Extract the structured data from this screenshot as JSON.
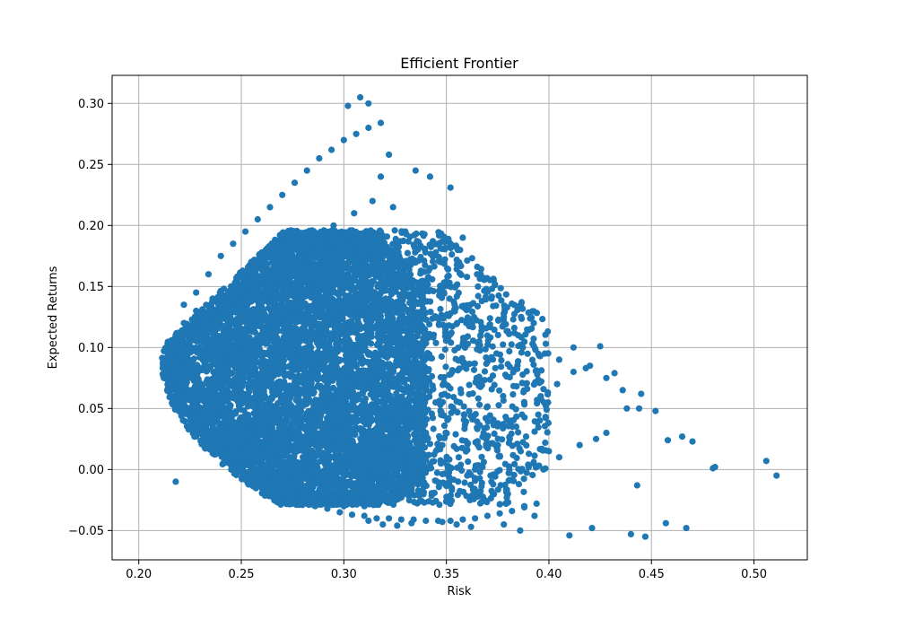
{
  "chart_data": {
    "type": "scatter",
    "title": "Efficient Frontier",
    "xlabel": "Risk",
    "ylabel": "Expected Returns",
    "xlim": [
      0.187,
      0.526
    ],
    "ylim": [
      -0.074,
      0.323
    ],
    "grid": true,
    "color": "#1f77b4",
    "xticks": [
      0.2,
      0.25,
      0.3,
      0.35,
      0.4,
      0.45,
      0.5
    ],
    "xtick_labels": [
      "0.20",
      "0.25",
      "0.30",
      "0.35",
      "0.40",
      "0.45",
      "0.50"
    ],
    "yticks": [
      -0.05,
      0.0,
      0.05,
      0.1,
      0.15,
      0.2,
      0.25,
      0.3
    ],
    "ytick_labels": [
      "−0.05",
      "0.00",
      "0.05",
      "0.10",
      "0.15",
      "0.20",
      "0.25",
      "0.30"
    ],
    "series": [
      {
        "x": [
          0.212,
          0.213,
          0.214,
          0.216,
          0.218,
          0.22,
          0.222,
          0.225,
          0.228,
          0.232,
          0.236,
          0.24,
          0.245,
          0.25,
          0.255,
          0.26,
          0.265,
          0.27,
          0.275,
          0.28,
          0.285,
          0.29,
          0.295,
          0.3,
          0.305,
          0.31,
          0.314,
          0.218,
          0.222,
          0.228,
          0.234,
          0.24,
          0.246,
          0.252,
          0.258,
          0.264,
          0.27,
          0.276,
          0.282,
          0.288,
          0.294,
          0.3,
          0.306,
          0.312,
          0.318,
          0.324,
          0.33,
          0.336,
          0.342,
          0.348,
          0.354,
          0.36,
          0.366,
          0.372,
          0.215,
          0.22,
          0.226,
          0.232,
          0.238,
          0.244,
          0.25,
          0.256,
          0.262,
          0.268,
          0.274,
          0.28,
          0.286,
          0.292,
          0.298,
          0.304,
          0.31,
          0.316,
          0.322,
          0.328,
          0.334,
          0.34,
          0.346,
          0.352,
          0.358,
          0.364,
          0.37,
          0.376,
          0.382,
          0.388,
          0.394,
          0.228,
          0.236,
          0.244,
          0.252,
          0.26,
          0.268,
          0.276,
          0.284,
          0.292,
          0.3,
          0.308,
          0.316,
          0.324,
          0.332,
          0.34,
          0.348,
          0.356,
          0.364,
          0.372,
          0.38,
          0.388,
          0.396,
          0.404,
          0.412,
          0.42,
          0.428,
          0.436,
          0.444,
          0.302,
          0.308,
          0.312,
          0.318,
          0.322,
          0.335,
          0.342,
          0.352,
          0.358,
          0.365,
          0.372,
          0.378,
          0.385,
          0.392,
          0.398,
          0.405,
          0.412,
          0.418,
          0.425,
          0.432,
          0.438,
          0.445,
          0.452,
          0.458,
          0.465,
          0.47,
          0.48,
          0.481,
          0.506,
          0.511,
          0.41,
          0.421,
          0.44,
          0.443,
          0.447,
          0.457,
          0.467,
          0.4,
          0.405,
          0.415,
          0.423,
          0.428,
          0.378,
          0.386,
          0.393,
          0.348,
          0.355,
          0.362,
          0.333,
          0.326,
          0.319,
          0.312
        ],
        "y": [
          0.09,
          0.08,
          0.1,
          0.06,
          0.11,
          0.05,
          0.12,
          0.04,
          0.13,
          0.03,
          0.14,
          0.02,
          0.15,
          0.01,
          0.16,
          0.0,
          0.17,
          -0.01,
          0.18,
          -0.02,
          0.19,
          -0.025,
          0.2,
          -0.03,
          0.21,
          -0.03,
          0.22,
          -0.01,
          0.135,
          0.145,
          0.16,
          0.175,
          0.185,
          0.195,
          0.205,
          0.215,
          0.225,
          0.235,
          0.245,
          0.255,
          0.262,
          0.27,
          0.275,
          0.28,
          0.24,
          0.215,
          0.195,
          0.18,
          0.165,
          0.15,
          0.135,
          0.12,
          0.105,
          0.092,
          0.07,
          0.06,
          0.05,
          0.04,
          0.03,
          0.02,
          0.01,
          0.0,
          -0.01,
          -0.015,
          -0.02,
          -0.025,
          -0.03,
          -0.032,
          -0.035,
          -0.037,
          -0.038,
          -0.04,
          -0.04,
          -0.041,
          -0.041,
          -0.042,
          -0.042,
          -0.042,
          -0.041,
          -0.04,
          -0.038,
          -0.036,
          -0.034,
          -0.031,
          -0.028,
          0.05,
          0.06,
          0.07,
          0.08,
          0.09,
          0.1,
          0.11,
          0.1,
          0.09,
          0.08,
          0.07,
          0.06,
          0.05,
          0.04,
          0.03,
          0.02,
          0.01,
          0.0,
          -0.01,
          -0.02,
          -0.03,
          0.06,
          0.07,
          0.08,
          0.085,
          0.075,
          0.065,
          0.05,
          0.298,
          0.305,
          0.3,
          0.284,
          0.258,
          0.245,
          0.24,
          0.231,
          0.19,
          0.16,
          0.14,
          0.125,
          0.11,
          0.103,
          0.095,
          0.09,
          0.1,
          0.083,
          0.101,
          0.079,
          0.05,
          0.062,
          0.048,
          0.024,
          0.027,
          0.023,
          0.001,
          0.002,
          0.007,
          -0.005,
          -0.054,
          -0.048,
          -0.053,
          -0.013,
          -0.055,
          -0.044,
          -0.048,
          0.015,
          0.01,
          0.02,
          0.025,
          0.03,
          -0.045,
          -0.05,
          -0.038,
          -0.043,
          -0.045,
          -0.047,
          -0.044,
          -0.046,
          -0.045,
          -0.042
        ]
      }
    ]
  }
}
